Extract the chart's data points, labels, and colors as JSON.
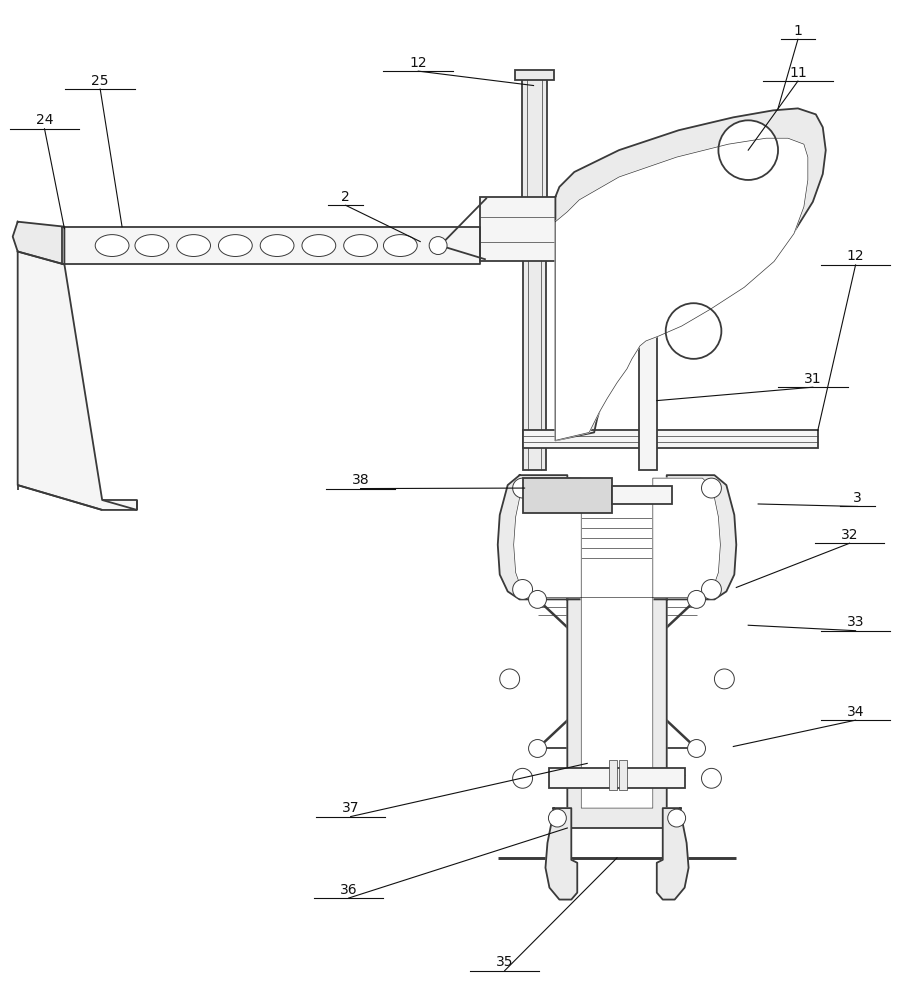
{
  "bg": "#ffffff",
  "lc": "#3a3a3a",
  "lw": 1.3,
  "tlw": 0.7,
  "flw": 0.5,
  "fc_light": "#f5f5f5",
  "fc_mid": "#ebebeb",
  "fc_dark": "#d8d8d8"
}
